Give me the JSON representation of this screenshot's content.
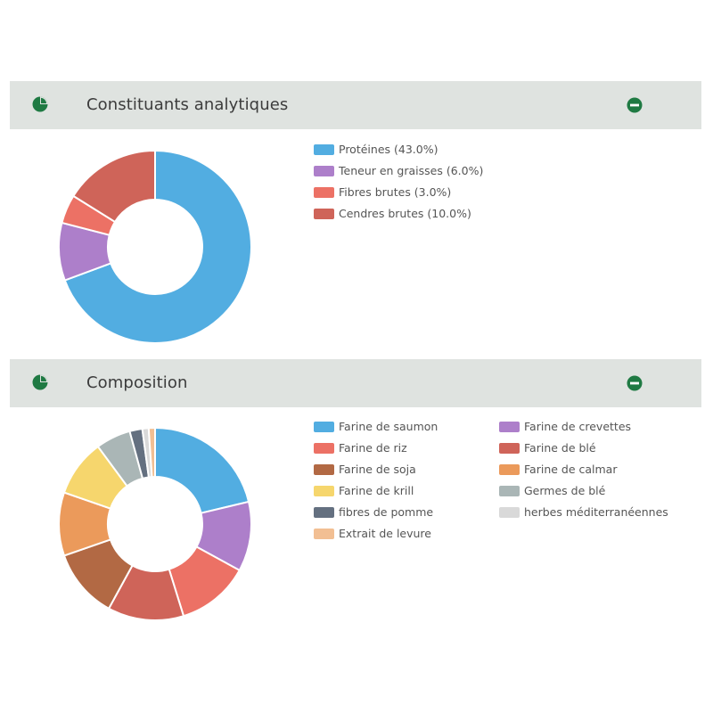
{
  "colors": {
    "header_bg": "#dfe3e0",
    "icon_green": "#1f7a43"
  },
  "sections": [
    {
      "title": "Constituants analytiques",
      "icon": "pie-chart-icon",
      "collapse_icon": "minus-circle-icon"
    },
    {
      "title": "Composition",
      "icon": "pie-chart-icon",
      "collapse_icon": "minus-circle-icon"
    }
  ],
  "chart_data": [
    {
      "type": "pie",
      "style": "donut",
      "legend_position": "right",
      "slices": [
        {
          "label": "Protéines (43.0%)",
          "value": 43.0,
          "color": "#52ade1"
        },
        {
          "label": "Teneur en graisses (6.0%)",
          "value": 6.0,
          "color": "#ad7fca"
        },
        {
          "label": "Fibres brutes (3.0%)",
          "value": 3.0,
          "color": "#ec7165"
        },
        {
          "label": "Cendres brutes (10.0%)",
          "value": 10.0,
          "color": "#cf6459"
        }
      ]
    },
    {
      "type": "pie",
      "style": "donut",
      "legend_position": "right",
      "slices": [
        {
          "label": "Farine de saumon",
          "value": 20.0,
          "color": "#52ade1"
        },
        {
          "label": "Farine de crevettes",
          "value": 11.0,
          "color": "#ad7fca"
        },
        {
          "label": "Farine de riz",
          "value": 11.5,
          "color": "#ec7165"
        },
        {
          "label": "Farine de blé",
          "value": 12.0,
          "color": "#cf6459"
        },
        {
          "label": "Farine de soja",
          "value": 11.0,
          "color": "#b26944"
        },
        {
          "label": "Farine de calmar",
          "value": 10.0,
          "color": "#eb9a5b"
        },
        {
          "label": "Farine de krill",
          "value": 9.0,
          "color": "#f6d66d"
        },
        {
          "label": "Germes de blé",
          "value": 5.5,
          "color": "#aab6b6"
        },
        {
          "label": "fibres de pomme",
          "value": 2.0,
          "color": "#647080"
        },
        {
          "label": "herbes méditerranéennes",
          "value": 1.0,
          "color": "#d9d9d9"
        },
        {
          "label": "Extrait de levure",
          "value": 1.0,
          "color": "#f2bf93"
        }
      ]
    }
  ]
}
